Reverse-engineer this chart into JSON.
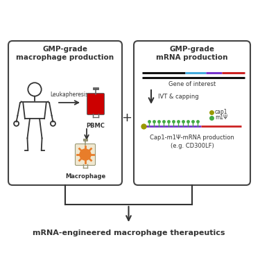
{
  "title_bottom": "mRNA-engineered macrophage therapeutics",
  "left_box_title": "GMP-grade\nmacrophage production",
  "right_box_title": "GMP-grade\nmRNA production",
  "leukapheresis_label": "Leukapheresis",
  "pbmc_label": "PBMC",
  "macrophage_label": "Macrophage",
  "ivt_label": "IVT & capping",
  "gene_label": "Gene of interest",
  "cap1_label": "cap1",
  "m1psi_label": "m1Ψ",
  "mrna_prod_label": "Cap1-m1Ψ-mRNA production\n(e.g. CD300LF)",
  "plus_sign": "+",
  "bg_color": "#ffffff",
  "box_edge_color": "#444444",
  "text_color": "#333333",
  "arrow_color": "#333333",
  "blood_bag_color": "#cc0000",
  "macrophage_color": "#e87d2a",
  "gene_black": "#111111",
  "gene_cyan": "#44aadd",
  "gene_purple": "#7733cc",
  "gene_red": "#cc2222",
  "cap1_color": "#999900",
  "tick_color": "#44aa44",
  "mrna_purple": "#7733cc",
  "mrna_red": "#cc2222"
}
